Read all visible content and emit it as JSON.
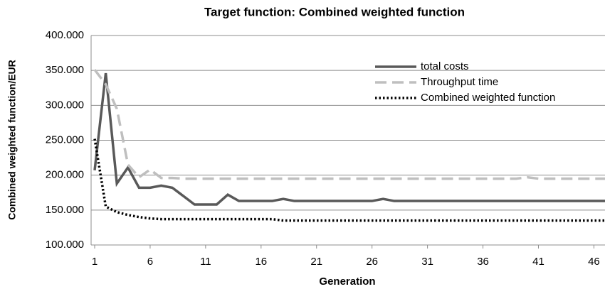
{
  "chart_data": {
    "type": "line",
    "title": "Target function: Combined  weighted function",
    "x_label": "Generation",
    "y_label": "Combined weighted function/EUR",
    "x": [
      1,
      2,
      3,
      4,
      5,
      6,
      7,
      8,
      9,
      10,
      11,
      12,
      13,
      14,
      15,
      16,
      17,
      18,
      19,
      20,
      21,
      22,
      23,
      24,
      25,
      26,
      27,
      28,
      29,
      30,
      31,
      32,
      33,
      34,
      35,
      36,
      37,
      38,
      39,
      40,
      41,
      42,
      43,
      44,
      45,
      46,
      47
    ],
    "xlim": [
      1,
      47
    ],
    "xticks": [
      1,
      6,
      11,
      16,
      21,
      26,
      31,
      36,
      41,
      46
    ],
    "ylim": [
      100000,
      400000
    ],
    "yticks": [
      {
        "value": 100000,
        "label": "100.000"
      },
      {
        "value": 150000,
        "label": "150.000"
      },
      {
        "value": 200000,
        "label": "200.000"
      },
      {
        "value": 250000,
        "label": "250.000"
      },
      {
        "value": 300000,
        "label": "300.000"
      },
      {
        "value": 350000,
        "label": "350.000"
      },
      {
        "value": 400000,
        "label": "400.000"
      }
    ],
    "grid": true,
    "legend": "upper right",
    "series": [
      {
        "name": "total costs",
        "color": "#595959",
        "style": "solid",
        "values": [
          207000,
          346000,
          188000,
          211000,
          182000,
          182000,
          185000,
          182000,
          170000,
          158000,
          158000,
          158000,
          172000,
          163000,
          163000,
          163000,
          163000,
          166000,
          163000,
          163000,
          163000,
          163000,
          163000,
          163000,
          163000,
          163000,
          166000,
          163000,
          163000,
          163000,
          163000,
          163000,
          163000,
          163000,
          163000,
          163000,
          163000,
          163000,
          163000,
          163000,
          163000,
          163000,
          163000,
          163000,
          163000,
          163000,
          163000
        ]
      },
      {
        "name": "Throughput time",
        "color": "#bfbfbf",
        "style": "dashed",
        "values": [
          351000,
          330000,
          295000,
          215000,
          197000,
          208000,
          196000,
          196000,
          195000,
          195000,
          195000,
          195000,
          195000,
          195000,
          195000,
          195000,
          195000,
          195000,
          195000,
          195000,
          195000,
          195000,
          195000,
          195000,
          195000,
          195000,
          195000,
          195000,
          195000,
          195000,
          195000,
          195000,
          195000,
          195000,
          195000,
          195000,
          195000,
          195000,
          195000,
          197000,
          195000,
          195000,
          195000,
          195000,
          195000,
          195000,
          195000
        ]
      },
      {
        "name": "Combined weighted function",
        "color": "#000000",
        "style": "dotted",
        "values": [
          252000,
          155000,
          147000,
          143000,
          140000,
          138000,
          137000,
          137000,
          137000,
          137000,
          137000,
          137000,
          137000,
          137000,
          137000,
          137000,
          137000,
          135000,
          135000,
          135000,
          135000,
          135000,
          135000,
          135000,
          135000,
          135000,
          135000,
          135000,
          135000,
          135000,
          135000,
          135000,
          135000,
          135000,
          135000,
          135000,
          135000,
          135000,
          135000,
          135000,
          135000,
          135000,
          135000,
          135000,
          135000,
          135000,
          135000
        ]
      }
    ]
  }
}
